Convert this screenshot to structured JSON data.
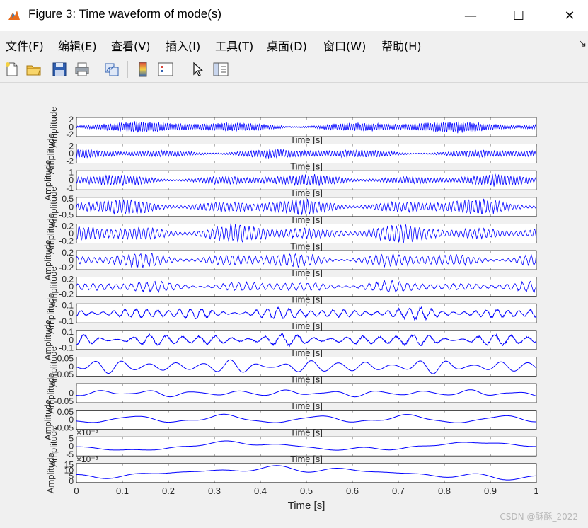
{
  "window": {
    "title": "Figure 3: Time waveform of mode(s)",
    "minimize": "—",
    "maximize": "☐",
    "close": "✕"
  },
  "menu": [
    {
      "label": "文件(F)"
    },
    {
      "label": "编辑(E)"
    },
    {
      "label": "查看(V)"
    },
    {
      "label": "插入(I)"
    },
    {
      "label": "工具(T)"
    },
    {
      "label": "桌面(D)"
    },
    {
      "label": "窗口(W)"
    },
    {
      "label": "帮助(H)"
    }
  ],
  "toolbar_icons": [
    "new-file-icon",
    "open-folder-icon",
    "save-icon",
    "print-icon",
    "link-plot-icon",
    "colorbar-icon",
    "legend-icon",
    "pointer-icon",
    "property-inspector-icon"
  ],
  "watermark": "CSDN @酥酥_2022",
  "chart_data": {
    "type": "line",
    "xlabel": "Time [s]",
    "xlim": [
      0,
      1
    ],
    "x_ticks": [
      "0",
      "0.1",
      "0.2",
      "0.3",
      "0.4",
      "0.5",
      "0.6",
      "0.7",
      "0.8",
      "0.9",
      "1"
    ],
    "series_color": "#0000ff",
    "subplots": [
      {
        "ylabel": "Amplitude",
        "xlabel": "Time [s]",
        "ylim": [
          -2.6,
          2.6
        ],
        "yticks": [
          "2",
          "0",
          "-2"
        ],
        "amp": 0.55,
        "freq": 210
      },
      {
        "ylabel": "Amplitude",
        "xlabel": "Time [s]",
        "ylim": [
          -2.6,
          2.6
        ],
        "yticks": [
          "2",
          "0",
          "-2"
        ],
        "amp": 0.45,
        "freq": 170
      },
      {
        "ylabel": "Amplitude",
        "xlabel": "Time [s]",
        "ylim": [
          -1.2,
          1.2
        ],
        "yticks": [
          "1",
          "0",
          "-1"
        ],
        "amp": 0.55,
        "freq": 150
      },
      {
        "ylabel": "Amplitude",
        "xlabel": "Time [s]",
        "ylim": [
          -0.6,
          0.6
        ],
        "yticks": [
          "0.5",
          "0",
          "-0.5"
        ],
        "amp": 0.75,
        "freq": 120
      },
      {
        "ylabel": "Amplitude",
        "xlabel": "Time [s]",
        "ylim": [
          -0.26,
          0.26
        ],
        "yticks": [
          "0.2",
          "0",
          "-0.2"
        ],
        "amp": 0.85,
        "freq": 100
      },
      {
        "ylabel": "Amplitude",
        "xlabel": "Time [s]",
        "ylim": [
          -0.26,
          0.26
        ],
        "yticks": [
          "0.2",
          "0",
          "-0.2"
        ],
        "amp": 0.7,
        "freq": 80
      },
      {
        "ylabel": "Amplitude",
        "xlabel": "Time [s]",
        "ylim": [
          -0.26,
          0.26
        ],
        "yticks": [
          "0.2",
          "0",
          "-0.2"
        ],
        "amp": 0.55,
        "freq": 60
      },
      {
        "ylabel": "Amplitude",
        "xlabel": "Time [s]",
        "ylim": [
          -0.12,
          0.12
        ],
        "yticks": [
          "0.1",
          "0",
          "-0.1"
        ],
        "amp": 0.6,
        "freq": 42
      },
      {
        "ylabel": "Amplitude",
        "xlabel": "Time [s]",
        "ylim": [
          -0.12,
          0.12
        ],
        "yticks": [
          "0.1",
          "0",
          "-0.1"
        ],
        "amp": 0.6,
        "freq": 28
      },
      {
        "ylabel": "Amplitude",
        "xlabel": "Time [s]",
        "ylim": [
          -0.06,
          0.06
        ],
        "yticks": [
          "0.05",
          "0",
          "-0.05"
        ],
        "amp": 0.75,
        "freq": 17
      },
      {
        "ylabel": "Amplitude",
        "xlabel": "Time [s]",
        "ylim": [
          -0.06,
          0.06
        ],
        "yticks": [
          "0",
          "-0.05"
        ],
        "amp": 0.4,
        "freq": 10
      },
      {
        "ylabel": "Amplitude",
        "xlabel": "Time [s]",
        "ylim": [
          -0.06,
          0.06
        ],
        "yticks": [
          "0.05",
          "0",
          "-0.05"
        ],
        "amp": 0.6,
        "freq": 5
      },
      {
        "ylabel": "Amplitude",
        "xlabel": "Time [s]",
        "ylim": [
          -6,
          6
        ],
        "yticks": [
          "5",
          "0",
          "-5"
        ],
        "exponent": "×10⁻³",
        "amp": 0.65,
        "freq": 2
      },
      {
        "ylabel": "Amplitude",
        "xlabel": "Time [s]",
        "ylim": [
          -1,
          16
        ],
        "yticks": [
          "15",
          "10",
          "5",
          "0"
        ],
        "exponent": "×10⁻³",
        "amp": 0.8,
        "freq": 1
      }
    ]
  }
}
